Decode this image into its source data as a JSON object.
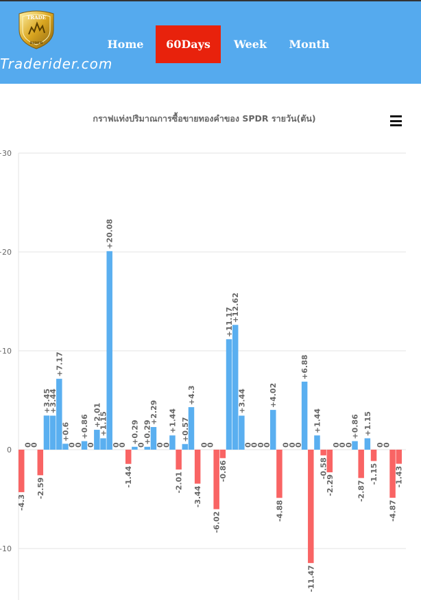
{
  "header": {
    "brand": "Traderider.com",
    "logo": {
      "top_text": "TRADE",
      "bottom_text": "RIDER",
      "icon": "gold-shield-logo-icon"
    },
    "nav": [
      {
        "label": "Home",
        "active": false
      },
      {
        "label": "60Days",
        "active": true
      },
      {
        "label": "Week",
        "active": false
      },
      {
        "label": "Month",
        "active": false
      }
    ]
  },
  "menu_icon": "hamburger-menu-icon",
  "colors": {
    "header": "#55aaee",
    "active_tab": "#e8220c",
    "positive": "#5aaff0",
    "negative": "#f96464"
  },
  "chart_data": {
    "type": "bar",
    "title": "กราฟแท่งปริมาณการซื้อขายทองคำของ SPDR รายวัน(ตัน)",
    "xlabel": "",
    "ylabel": "",
    "ylim": [
      -15,
      30
    ],
    "yticks": [
      "+30",
      "+20",
      "+10",
      "0",
      "-10"
    ],
    "grid": true,
    "values": [
      -4.3,
      0,
      0,
      -2.59,
      3.45,
      3.44,
      7.17,
      0.6,
      0,
      0,
      0.86,
      0,
      2.01,
      1.15,
      20.08,
      0,
      0,
      -1.44,
      0.29,
      0,
      0.29,
      2.29,
      0,
      0,
      1.44,
      -2.01,
      0.57,
      4.3,
      -3.44,
      0,
      0,
      -6.02,
      -0.86,
      11.17,
      12.62,
      3.44,
      0,
      0,
      0,
      0,
      4.02,
      -4.88,
      0,
      0,
      0,
      6.88,
      -11.47,
      1.44,
      -0.58,
      -2.29,
      0,
      0,
      0,
      0.86,
      -2.87,
      1.15,
      -1.15,
      0,
      0,
      -4.87,
      -1.43
    ],
    "labels": [
      "-4.3",
      "0",
      "0",
      "-2.59",
      "+3.45",
      "+3.44",
      "+7.17",
      "+0.6",
      "0",
      "0",
      "+0.86",
      "0",
      "+2.01",
      "+1.15",
      "+20.08",
      "0",
      "0",
      "-1.44",
      "+0.29",
      "0",
      "+0.29",
      "+2.29",
      "0",
      "0",
      "+1.44",
      "-2.01",
      "+0.57",
      "+4.3",
      "-3.44",
      "0",
      "0",
      "-6.02",
      "-0.86",
      "+11.17",
      "+12.62",
      "+3.44",
      "0",
      "0",
      "0",
      "0",
      "+4.02",
      "-4.88",
      "0",
      "0",
      "0",
      "+6.88",
      "-11.47",
      "+1.44",
      "-0.58",
      "-2.29",
      "0",
      "0",
      "0",
      "+0.86",
      "-2.87",
      "+1.15",
      "-1.15",
      "0",
      "0",
      "-4.87",
      "-1.43"
    ]
  }
}
